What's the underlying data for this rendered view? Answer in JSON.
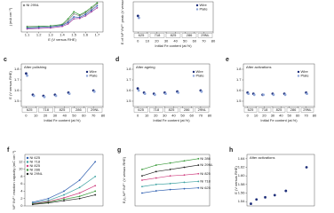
{
  "chart_data": [
    {
      "type": "line",
      "xlabel": "E (V versus RHE)",
      "ylabel": "j (mA cm⁻²)",
      "xlim": [
        1.05,
        1.75
      ],
      "xticks": [
        1.1,
        1.2,
        1.3,
        1.4,
        1.5,
        1.6,
        1.7
      ],
      "ylim": [
        -1,
        5
      ],
      "legend": "left",
      "series": [
        {
          "name": "Ni 29NL",
          "color": "#888888",
          "x": [
            1.1,
            1.2,
            1.3,
            1.4,
            1.45,
            1.5,
            1.55,
            1.6,
            1.65,
            1.7
          ],
          "values": [
            0.1,
            0.1,
            0.2,
            0.4,
            1.2,
            2.6,
            2.2,
            2.8,
            3.6,
            4.6
          ]
        },
        {
          "color": "#3a9a3a",
          "x": [
            1.1,
            1.2,
            1.3,
            1.4,
            1.45,
            1.5,
            1.55,
            1.6,
            1.65,
            1.7
          ],
          "values": [
            0.0,
            0.1,
            0.2,
            0.5,
            1.6,
            3.0,
            2.4,
            3.0,
            3.9,
            4.8
          ]
        },
        {
          "color": "#2f5fb0",
          "x": [
            1.1,
            1.2,
            1.3,
            1.4,
            1.45,
            1.5,
            1.55,
            1.6,
            1.65,
            1.7
          ],
          "values": [
            -0.2,
            -0.1,
            0.0,
            0.3,
            0.9,
            2.0,
            1.9,
            2.5,
            3.3,
            4.2
          ]
        },
        {
          "color": "#a040a0",
          "x": [
            1.1,
            1.2,
            1.3,
            1.4,
            1.45,
            1.5,
            1.55,
            1.6,
            1.65,
            1.7
          ],
          "values": [
            -0.4,
            -0.3,
            -0.2,
            0.1,
            0.6,
            1.6,
            1.7,
            2.2,
            3.0,
            3.8
          ]
        }
      ]
    },
    {
      "type": "scatter",
      "xlabel": "Initial Fe content (at.%)",
      "ylabel": "E of Ni²⁺/Ni³⁺ peak (V versus RHE)",
      "xlim": [
        -5,
        80
      ],
      "xticks": [
        0,
        10,
        20,
        30,
        40,
        50,
        60,
        70,
        80
      ],
      "ylim": [
        1.3,
        1.45
      ],
      "legend": "right",
      "alloys": [
        "625",
        "718",
        "825",
        "286",
        "29NL"
      ],
      "series": [
        {
          "name": "Wire",
          "color": "#1f2f7a",
          "x": [
            0
          ],
          "values": [
            1.38
          ]
        },
        {
          "name": "Plate",
          "color": "#8fa6d8",
          "x": [
            1
          ],
          "values": [
            1.37
          ]
        }
      ]
    },
    {
      "type": "scatter",
      "label": "c",
      "title": "After polishing",
      "xlabel": "Initial Fe content (at.%)",
      "ylabel": "E (V versus RHE)",
      "xlim": [
        -5,
        80
      ],
      "xticks": [
        0,
        10,
        20,
        30,
        40,
        50,
        60,
        70,
        80
      ],
      "ylim": [
        1.45,
        1.85
      ],
      "yticks": [
        1.5,
        1.6,
        1.7,
        1.8
      ],
      "legend": "right",
      "alloys": [
        "625",
        "718",
        "825",
        "286",
        "29NL"
      ],
      "series": [
        {
          "name": "Wire",
          "color": "#1f2f7a",
          "x": [
            0,
            7,
            18,
            30,
            44,
            70
          ],
          "values": [
            1.76,
            1.56,
            1.55,
            1.56,
            1.58,
            1.6
          ]
        },
        {
          "name": "Plate",
          "color": "#8fa6d8",
          "x": [
            1,
            8,
            19,
            31,
            45,
            71
          ],
          "values": [
            1.74,
            1.55,
            1.54,
            1.55,
            1.57,
            1.59
          ]
        }
      ]
    },
    {
      "type": "scatter",
      "label": "d",
      "title": "After ageing",
      "xlabel": "Initial Fe content (at.%)",
      "xlim": [
        -5,
        80
      ],
      "xticks": [
        0,
        10,
        20,
        30,
        40,
        50,
        60,
        70,
        80
      ],
      "ylim": [
        1.45,
        1.85
      ],
      "yticks": [
        1.5,
        1.6,
        1.7,
        1.8
      ],
      "legend": "right",
      "alloys": [
        "625",
        "718",
        "825",
        "286",
        "29NL"
      ],
      "series": [
        {
          "name": "Wire",
          "color": "#1f2f7a",
          "x": [
            0,
            7,
            18,
            30,
            44,
            70
          ],
          "values": [
            1.62,
            1.58,
            1.57,
            1.58,
            1.59,
            1.6
          ]
        },
        {
          "name": "Plate",
          "color": "#8fa6d8",
          "x": [
            1,
            8,
            19,
            31,
            45,
            71
          ],
          "values": [
            1.6,
            1.57,
            1.56,
            1.57,
            1.58,
            1.59
          ]
        }
      ]
    },
    {
      "type": "scatter",
      "label": "e",
      "title": "After activations",
      "xlabel": "Initial Fe content (at.%)",
      "xlim": [
        -5,
        80
      ],
      "xticks": [
        0,
        10,
        20,
        30,
        40,
        50,
        60,
        70,
        80
      ],
      "ylim": [
        1.45,
        1.85
      ],
      "yticks": [
        1.5,
        1.6,
        1.7,
        1.8
      ],
      "legend": "right",
      "alloys": [
        "625",
        "718",
        "825",
        "286",
        "29NL"
      ],
      "series": [
        {
          "name": "Wire",
          "color": "#1f2f7a",
          "x": [
            0,
            7,
            18,
            30,
            44,
            70
          ],
          "values": [
            1.58,
            1.57,
            1.56,
            1.57,
            1.57,
            1.58
          ]
        },
        {
          "name": "Plate",
          "color": "#8fa6d8",
          "x": [
            1,
            8,
            19,
            31,
            45,
            71
          ],
          "values": [
            1.57,
            1.56,
            1.56,
            1.56,
            1.56,
            1.57
          ]
        }
      ]
    },
    {
      "type": "line",
      "label": "f",
      "ylabel": "Ni²⁺/Ni³⁺ reaction capacity (mC cm⁻²)",
      "xlim": [
        0.5,
        5.5
      ],
      "ylim": [
        0,
        14
      ],
      "yticks": [
        0,
        2,
        4,
        6,
        8,
        10,
        12
      ],
      "legend": "left",
      "series": [
        {
          "name": "Ni 625",
          "color": "#2f5fb0",
          "x": [
            1,
            2,
            3,
            4,
            5
          ],
          "values": [
            1,
            2,
            4,
            7,
            12
          ]
        },
        {
          "name": "Ni 718",
          "color": "#3aa0a0",
          "x": [
            1,
            2,
            3,
            4,
            5
          ],
          "values": [
            0.8,
            1.5,
            3,
            5,
            8
          ]
        },
        {
          "name": "Ni 825",
          "color": "#d04080",
          "x": [
            1,
            2,
            3,
            4,
            5
          ],
          "values": [
            0.6,
            1.2,
            2.2,
            3.5,
            5.5
          ]
        },
        {
          "name": "Ni 286",
          "color": "#3a9a3a",
          "x": [
            1,
            2,
            3,
            4,
            5
          ],
          "values": [
            0.5,
            1,
            1.8,
            2.6,
            4
          ]
        },
        {
          "name": "Ni 29NL",
          "color": "#222222",
          "x": [
            1,
            2,
            3,
            4,
            5
          ],
          "values": [
            0.4,
            0.8,
            1.4,
            2,
            3
          ]
        }
      ]
    },
    {
      "type": "line",
      "label": "g",
      "ylabel": "E₁/₂,Ni²⁺/Ni³⁺ (V versus RHE)",
      "xlim": [
        0.5,
        5.8
      ],
      "ylim": [
        1.3,
        1.42
      ],
      "legend": "end",
      "series": [
        {
          "name": "Ni 286",
          "color": "#3a9a3a",
          "x": [
            1,
            2,
            3,
            4,
            5
          ],
          "values": [
            1.385,
            1.395,
            1.4,
            1.405,
            1.41
          ]
        },
        {
          "name": "Ni 29NL",
          "color": "#222222",
          "x": [
            1,
            2,
            3,
            4,
            5
          ],
          "values": [
            1.37,
            1.38,
            1.385,
            1.39,
            1.395
          ]
        },
        {
          "name": "Ni 825",
          "color": "#d04080",
          "x": [
            1,
            2,
            3,
            4,
            5
          ],
          "values": [
            1.36,
            1.365,
            1.37,
            1.372,
            1.375
          ]
        },
        {
          "name": "Ni 718",
          "color": "#3aa0a0",
          "x": [
            1,
            2,
            3,
            4,
            5
          ],
          "values": [
            1.345,
            1.35,
            1.352,
            1.355,
            1.357
          ]
        },
        {
          "name": "Ni 625",
          "color": "#2f5fb0",
          "x": [
            1,
            2,
            3,
            4,
            5
          ],
          "values": [
            1.33,
            1.335,
            1.338,
            1.34,
            1.342
          ]
        }
      ]
    },
    {
      "type": "scatter",
      "label": "h",
      "title": "After activations",
      "ylabel": "E (V versus RHE)",
      "xlim": [
        -5,
        80
      ],
      "ylim": [
        1.53,
        1.65
      ],
      "yticks": [
        1.54,
        1.56,
        1.58,
        {
          "value": 1.6,
          "label": "1.60"
        },
        1.62,
        1.64
      ],
      "series": [
        {
          "name": "Wire",
          "color": "#1f2f7a",
          "x": [
            0,
            7,
            18,
            30,
            44,
            70
          ],
          "values": [
            1.535,
            1.545,
            1.55,
            1.555,
            1.565,
            1.62
          ]
        }
      ]
    }
  ]
}
